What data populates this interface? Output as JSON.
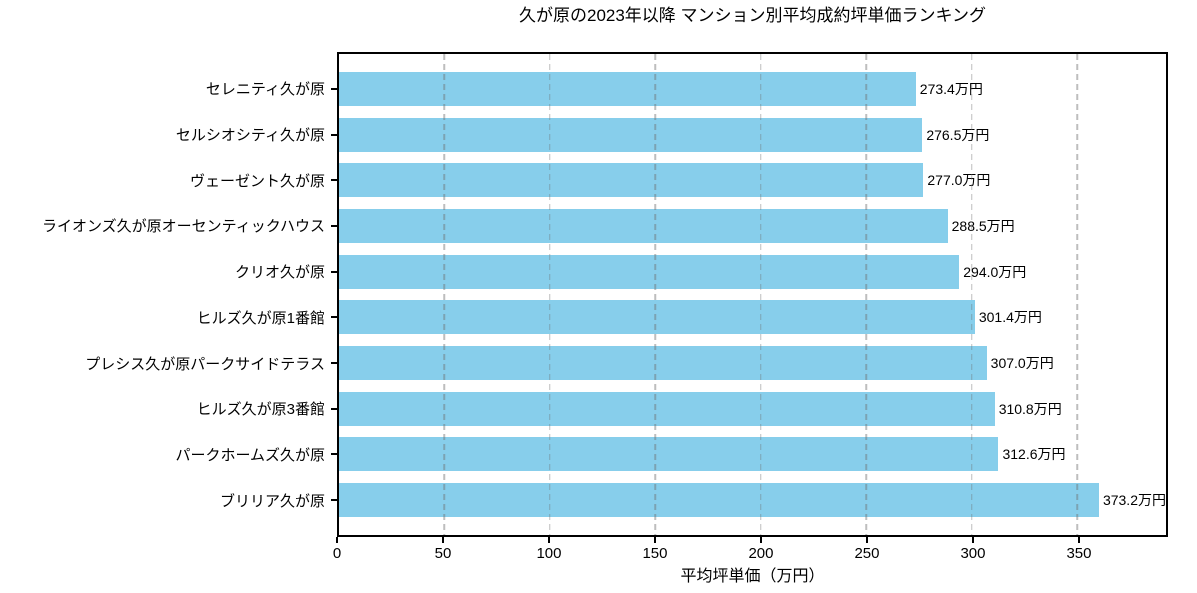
{
  "chart_data": {
    "type": "bar",
    "orientation": "horizontal",
    "title": "久が原の2023年以降 マンション別平均成約坪単価ランキング",
    "xlabel": "平均坪単価（万円）",
    "categories": [
      "セレニティ久が原",
      "セルシオシティ久が原",
      "ヴェーゼント久が原",
      "ライオンズ久が原オーセンティックハウス",
      "クリオ久が原",
      "ヒルズ久が原1番館",
      "プレシス久が原パークサイドテラス",
      "ヒルズ久が原3番館",
      "パークホームズ久が原",
      "ブリリア久が原"
    ],
    "values": [
      273.4,
      276.5,
      277.0,
      288.5,
      294.0,
      301.4,
      307.0,
      310.8,
      312.6,
      373.2
    ],
    "value_labels": [
      "273.4万円",
      "276.5万円",
      "277.0万円",
      "288.5万円",
      "294.0万円",
      "301.4万円",
      "307.0万円",
      "310.8万円",
      "312.6万円",
      "373.2万円"
    ],
    "xticks": [
      0,
      50,
      100,
      150,
      200,
      250,
      300,
      350
    ],
    "xlim": [
      0,
      392
    ],
    "bar_color": "#87CEEB",
    "grid": "vertical-dashed",
    "legend": "none"
  }
}
